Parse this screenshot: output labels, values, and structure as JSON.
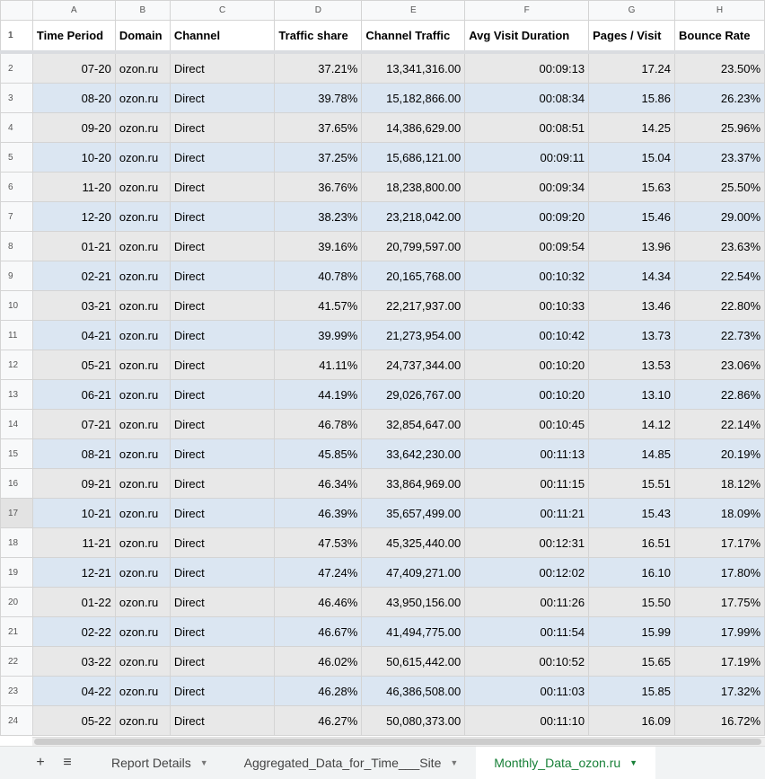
{
  "columns": [
    "A",
    "B",
    "C",
    "D",
    "E",
    "F",
    "G",
    "H"
  ],
  "headers": [
    "Time Period",
    "Domain",
    "Channel",
    "Traffic share",
    "Channel Traffic",
    "Avg Visit Duration",
    "Pages / Visit",
    "Bounce Rate"
  ],
  "rows": [
    [
      "07-20",
      "ozon.ru",
      "Direct",
      "37.21%",
      "13,341,316.00",
      "00:09:13",
      "17.24",
      "23.50%"
    ],
    [
      "08-20",
      "ozon.ru",
      "Direct",
      "39.78%",
      "15,182,866.00",
      "00:08:34",
      "15.86",
      "26.23%"
    ],
    [
      "09-20",
      "ozon.ru",
      "Direct",
      "37.65%",
      "14,386,629.00",
      "00:08:51",
      "14.25",
      "25.96%"
    ],
    [
      "10-20",
      "ozon.ru",
      "Direct",
      "37.25%",
      "15,686,121.00",
      "00:09:11",
      "15.04",
      "23.37%"
    ],
    [
      "11-20",
      "ozon.ru",
      "Direct",
      "36.76%",
      "18,238,800.00",
      "00:09:34",
      "15.63",
      "25.50%"
    ],
    [
      "12-20",
      "ozon.ru",
      "Direct",
      "38.23%",
      "23,218,042.00",
      "00:09:20",
      "15.46",
      "29.00%"
    ],
    [
      "01-21",
      "ozon.ru",
      "Direct",
      "39.16%",
      "20,799,597.00",
      "00:09:54",
      "13.96",
      "23.63%"
    ],
    [
      "02-21",
      "ozon.ru",
      "Direct",
      "40.78%",
      "20,165,768.00",
      "00:10:32",
      "14.34",
      "22.54%"
    ],
    [
      "03-21",
      "ozon.ru",
      "Direct",
      "41.57%",
      "22,217,937.00",
      "00:10:33",
      "13.46",
      "22.80%"
    ],
    [
      "04-21",
      "ozon.ru",
      "Direct",
      "39.99%",
      "21,273,954.00",
      "00:10:42",
      "13.73",
      "22.73%"
    ],
    [
      "05-21",
      "ozon.ru",
      "Direct",
      "41.11%",
      "24,737,344.00",
      "00:10:20",
      "13.53",
      "23.06%"
    ],
    [
      "06-21",
      "ozon.ru",
      "Direct",
      "44.19%",
      "29,026,767.00",
      "00:10:20",
      "13.10",
      "22.86%"
    ],
    [
      "07-21",
      "ozon.ru",
      "Direct",
      "46.78%",
      "32,854,647.00",
      "00:10:45",
      "14.12",
      "22.14%"
    ],
    [
      "08-21",
      "ozon.ru",
      "Direct",
      "45.85%",
      "33,642,230.00",
      "00:11:13",
      "14.85",
      "20.19%"
    ],
    [
      "09-21",
      "ozon.ru",
      "Direct",
      "46.34%",
      "33,864,969.00",
      "00:11:15",
      "15.51",
      "18.12%"
    ],
    [
      "10-21",
      "ozon.ru",
      "Direct",
      "46.39%",
      "35,657,499.00",
      "00:11:21",
      "15.43",
      "18.09%"
    ],
    [
      "11-21",
      "ozon.ru",
      "Direct",
      "47.53%",
      "45,325,440.00",
      "00:12:31",
      "16.51",
      "17.17%"
    ],
    [
      "12-21",
      "ozon.ru",
      "Direct",
      "47.24%",
      "47,409,271.00",
      "00:12:02",
      "16.10",
      "17.80%"
    ],
    [
      "01-22",
      "ozon.ru",
      "Direct",
      "46.46%",
      "43,950,156.00",
      "00:11:26",
      "15.50",
      "17.75%"
    ],
    [
      "02-22",
      "ozon.ru",
      "Direct",
      "46.67%",
      "41,494,775.00",
      "00:11:54",
      "15.99",
      "17.99%"
    ],
    [
      "03-22",
      "ozon.ru",
      "Direct",
      "46.02%",
      "50,615,442.00",
      "00:10:52",
      "15.65",
      "17.19%"
    ],
    [
      "04-22",
      "ozon.ru",
      "Direct",
      "46.28%",
      "46,386,508.00",
      "00:11:03",
      "15.85",
      "17.32%"
    ],
    [
      "05-22",
      "ozon.ru",
      "Direct",
      "46.27%",
      "50,080,373.00",
      "00:11:10",
      "16.09",
      "16.72%"
    ]
  ],
  "sheet_tabs": {
    "add": "+",
    "all_sheets": "≡",
    "tabs": [
      {
        "label": "Report Details",
        "active": false
      },
      {
        "label": "Aggregated_Data_for_Time___Site",
        "active": false
      },
      {
        "label": "Monthly_Data_ozon.ru",
        "active": true
      }
    ],
    "dropdown": "▼"
  },
  "colors": {
    "band_a": "#e8e8e8",
    "band_b": "#dbe6f2",
    "active_tab": "#188038"
  }
}
